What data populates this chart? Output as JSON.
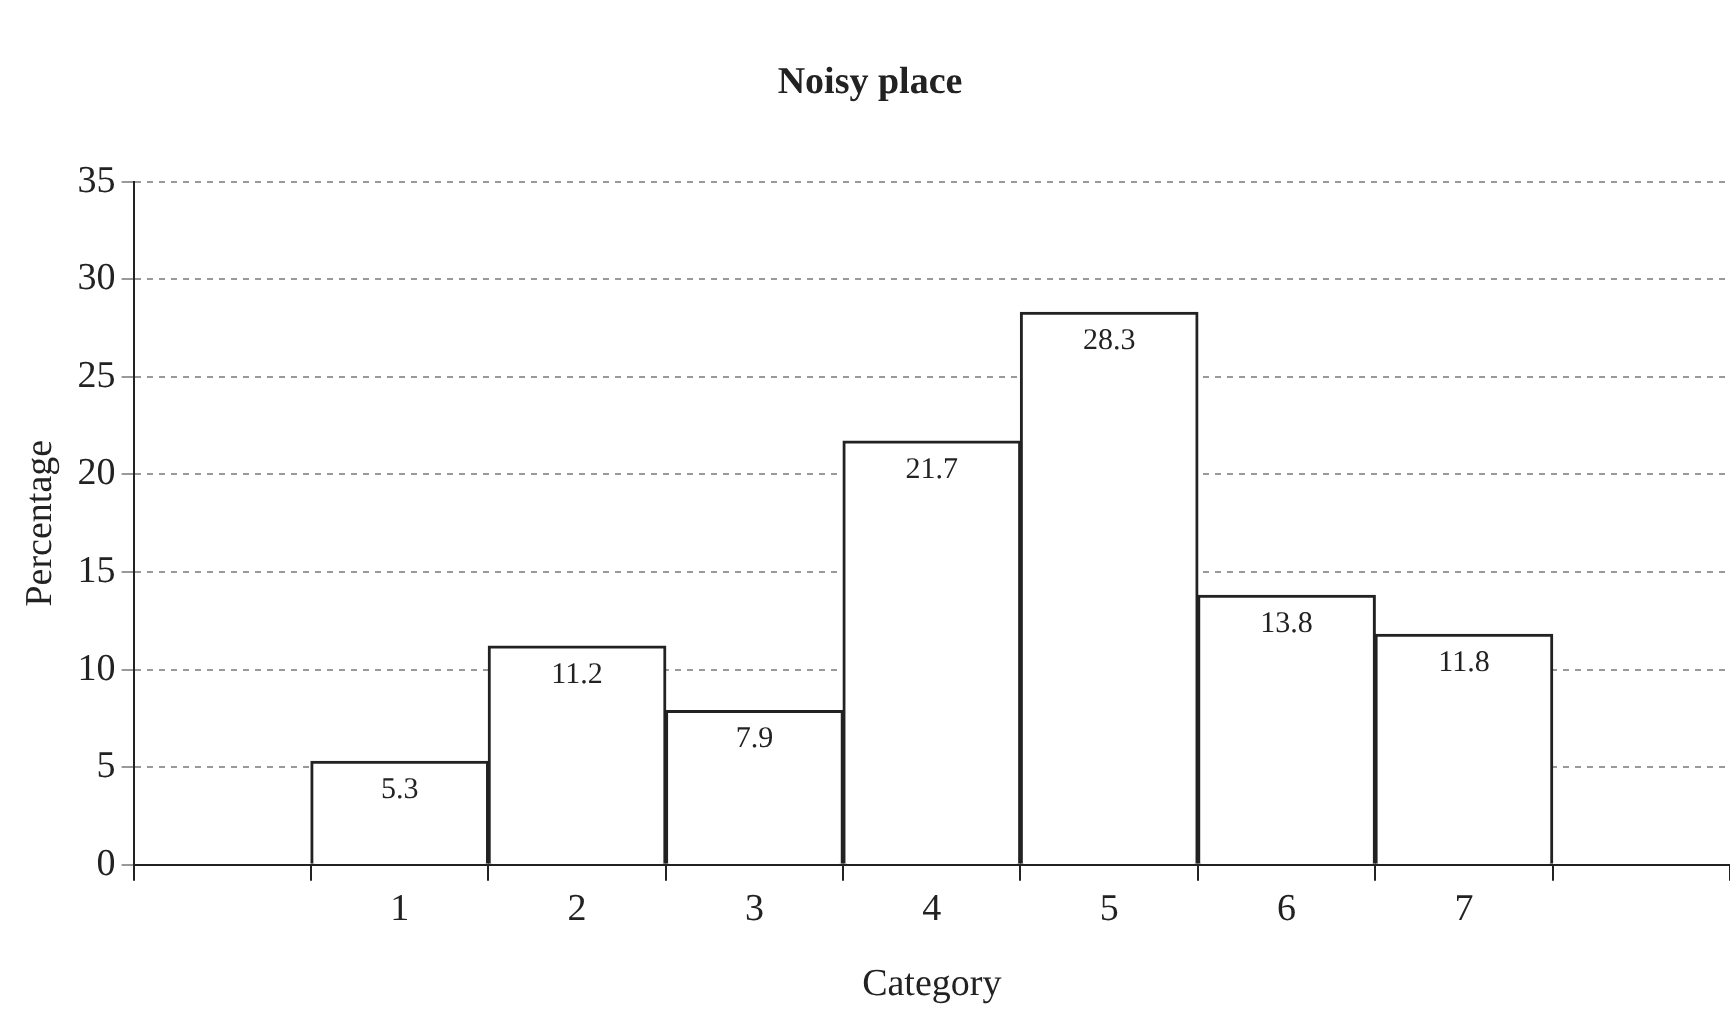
{
  "chart_data": {
    "type": "bar",
    "title": "Noisy place",
    "xlabel": "Category",
    "ylabel": "Percentage",
    "categories": [
      null,
      "1",
      "2",
      "3",
      "4",
      "5",
      "6",
      "7",
      null
    ],
    "values": [
      null,
      5.3,
      11.2,
      7.9,
      21.7,
      28.3,
      13.8,
      11.8,
      null
    ],
    "color": "#ffffff",
    "ylim": [
      0,
      35
    ],
    "yticks": [
      0,
      5,
      10,
      15,
      20,
      25,
      30,
      35
    ],
    "grid": "y",
    "data_labels": true
  }
}
